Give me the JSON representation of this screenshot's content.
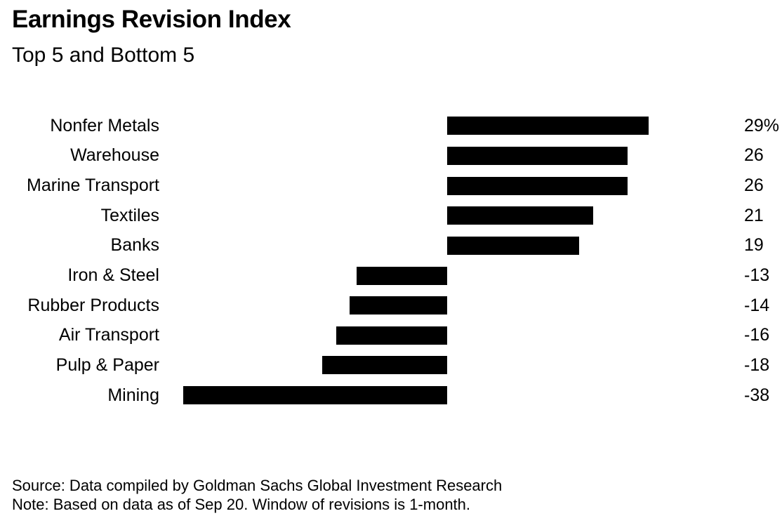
{
  "header": {
    "title": "Earnings Revision Index",
    "subtitle": "Top 5 and Bottom 5"
  },
  "chart_data": {
    "type": "bar",
    "orientation": "horizontal",
    "title": "Earnings Revision Index",
    "subtitle": "Top 5 and Bottom 5",
    "categories": [
      "Nonfer Metals",
      "Warehouse",
      "Marine Transport",
      "Textiles",
      "Banks",
      "Iron & Steel",
      "Rubber Products",
      "Air Transport",
      "Pulp & Paper",
      "Mining"
    ],
    "values": [
      29,
      26,
      26,
      21,
      19,
      -13,
      -14,
      -16,
      -18,
      -38
    ],
    "value_labels": [
      "29%",
      "26",
      "26",
      "21",
      "19",
      "-13",
      "-14",
      "-16",
      "-18",
      "-38"
    ],
    "unit": "%",
    "baseline": 0,
    "xlim": [
      -41,
      43
    ],
    "grid": false,
    "legend": false,
    "bar_color": "#000000"
  },
  "footer": {
    "source": "Source: Data compiled by Goldman Sachs Global Investment Research",
    "note": "Note: Based on data as of Sep 20. Window of revisions is 1-month."
  },
  "colors": {
    "background": "#ffffff",
    "text": "#000000",
    "bar": "#000000"
  }
}
